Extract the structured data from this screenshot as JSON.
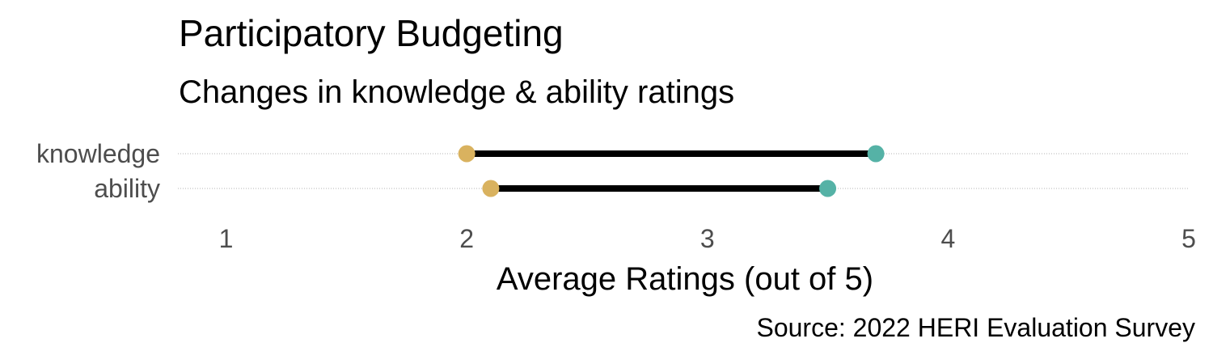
{
  "chart_data": {
    "type": "dumbbell",
    "title": "Participatory Budgeting",
    "subtitle": "Changes in knowledge & ability ratings",
    "xlabel": "Average Ratings (out of 5)",
    "ylabel": "",
    "caption": "Source: 2022 HERI Evaluation Survey",
    "xlim": [
      0.8,
      5.0
    ],
    "xticks": [
      1,
      2,
      3,
      4,
      5
    ],
    "categories": [
      "knowledge",
      "ability"
    ],
    "series": [
      {
        "values": [
          2.0,
          2.1
        ],
        "color": "#D9B25F"
      },
      {
        "values": [
          3.7,
          3.5
        ],
        "color": "#55B2A6"
      }
    ],
    "segment_color": "#000000",
    "grid": {
      "major_x": false,
      "major_y": true,
      "style": "dotted"
    },
    "legend": "none"
  }
}
